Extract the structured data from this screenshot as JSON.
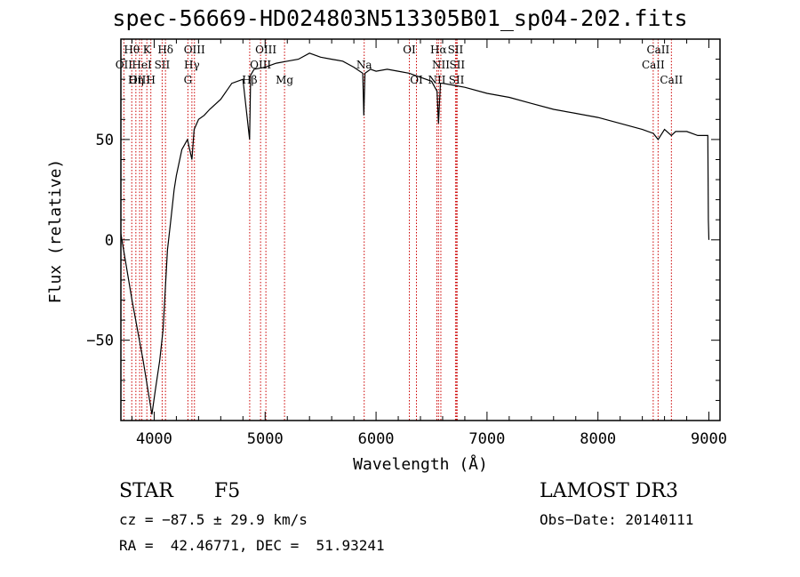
{
  "chart_data": {
    "type": "line",
    "title": "spec-56669-HD024803N513305B01_sp04-202.fits",
    "xlabel": "Wavelength (Å)",
    "ylabel": "Flux (relative)",
    "xlim": [
      3700,
      9100
    ],
    "ylim": [
      -90,
      100
    ],
    "xticks": [
      4000,
      5000,
      6000,
      7000,
      8000,
      9000
    ],
    "yticks": [
      50,
      0,
      -50
    ],
    "xtick_labels": [
      "4000",
      "5000",
      "6000",
      "7000",
      "8000",
      "9000"
    ],
    "ytick_labels": [
      "50",
      "0",
      "−50"
    ],
    "series": [
      {
        "name": "spectrum",
        "x": [
          3700,
          3800,
          3900,
          3980,
          4010,
          4050,
          4080,
          4100,
          4120,
          4150,
          4180,
          4200,
          4250,
          4300,
          4340,
          4360,
          4400,
          4450,
          4500,
          4600,
          4700,
          4800,
          4860,
          4870,
          4900,
          5000,
          5100,
          5200,
          5300,
          5400,
          5500,
          5600,
          5700,
          5800,
          5880,
          5890,
          5900,
          5950,
          6000,
          6100,
          6200,
          6300,
          6400,
          6500,
          6550,
          6563,
          6580,
          6600,
          6700,
          6800,
          7000,
          7200,
          7400,
          7600,
          7800,
          8000,
          8200,
          8400,
          8500,
          8542,
          8600,
          8662,
          8700,
          8800,
          8900,
          8990,
          8995,
          9000
        ],
        "y": [
          3,
          -30,
          -60,
          -87,
          -75,
          -60,
          -45,
          -25,
          -5,
          10,
          25,
          32,
          45,
          50,
          40,
          55,
          60,
          62,
          65,
          70,
          78,
          80,
          50,
          82,
          85,
          86,
          88,
          89,
          90,
          93,
          91,
          90,
          89,
          86,
          83,
          62,
          83,
          85,
          84,
          85,
          84,
          83,
          81,
          79,
          74,
          58,
          78,
          78,
          77,
          76,
          73,
          71,
          68,
          65,
          63,
          61,
          58,
          55,
          53,
          50,
          55,
          52,
          54,
          54,
          52,
          52,
          10,
          0
        ]
      }
    ],
    "spectral_lines": [
      {
        "label": "Hθ",
        "wavelength": 3798,
        "row": 0
      },
      {
        "label": "K",
        "wavelength": 3934,
        "row": 0
      },
      {
        "label": "Hδ",
        "wavelength": 4102,
        "row": 0
      },
      {
        "label": "OIII",
        "wavelength": 4363,
        "row": 0
      },
      {
        "label": "OIII",
        "wavelength": 5007,
        "row": 0
      },
      {
        "label": "OI",
        "wavelength": 6300,
        "row": 0
      },
      {
        "label": "Hα",
        "wavelength": 6563,
        "row": 0
      },
      {
        "label": "SII",
        "wavelength": 6716,
        "row": 0
      },
      {
        "label": "CaII",
        "wavelength": 8542,
        "row": 0
      },
      {
        "label": "OII",
        "wavelength": 3727,
        "row": 1
      },
      {
        "label": "HeI",
        "wavelength": 3889,
        "row": 1
      },
      {
        "label": "SII",
        "wavelength": 4072,
        "row": 1
      },
      {
        "label": "Hγ",
        "wavelength": 4340,
        "row": 1
      },
      {
        "label": "OIII",
        "wavelength": 4959,
        "row": 1
      },
      {
        "label": "Na",
        "wavelength": 5893,
        "row": 1
      },
      {
        "label": "NII",
        "wavelength": 6584,
        "row": 1
      },
      {
        "label": "SII",
        "wavelength": 6731,
        "row": 1
      },
      {
        "label": "CaII",
        "wavelength": 8498,
        "row": 1
      },
      {
        "label": "OIII",
        "wavelength": 3869,
        "row": 2
      },
      {
        "label": "Hη",
        "wavelength": 3835,
        "row": 2
      },
      {
        "label": "H",
        "wavelength": 3970,
        "row": 2
      },
      {
        "label": "G",
        "wavelength": 4304,
        "row": 2
      },
      {
        "label": "Hβ",
        "wavelength": 4861,
        "row": 2
      },
      {
        "label": "Mg",
        "wavelength": 5175,
        "row": 2
      },
      {
        "label": "OI",
        "wavelength": 6364,
        "row": 2
      },
      {
        "label": "NII",
        "wavelength": 6548,
        "row": 2
      },
      {
        "label": "SII",
        "wavelength": 6725,
        "row": 2
      },
      {
        "label": "CaII",
        "wavelength": 8662,
        "row": 2
      }
    ]
  },
  "info": {
    "class": "STAR",
    "subclass": "F5",
    "survey": "LAMOST DR3",
    "cz": "cz = −87.5 ± 29.9 km/s",
    "obs_date": "Obs−Date: 20140111",
    "coords": "RA =  42.46771, DEC =  51.93241"
  },
  "colors": {
    "line_marker": "#cc0000",
    "spectrum": "#000000"
  }
}
